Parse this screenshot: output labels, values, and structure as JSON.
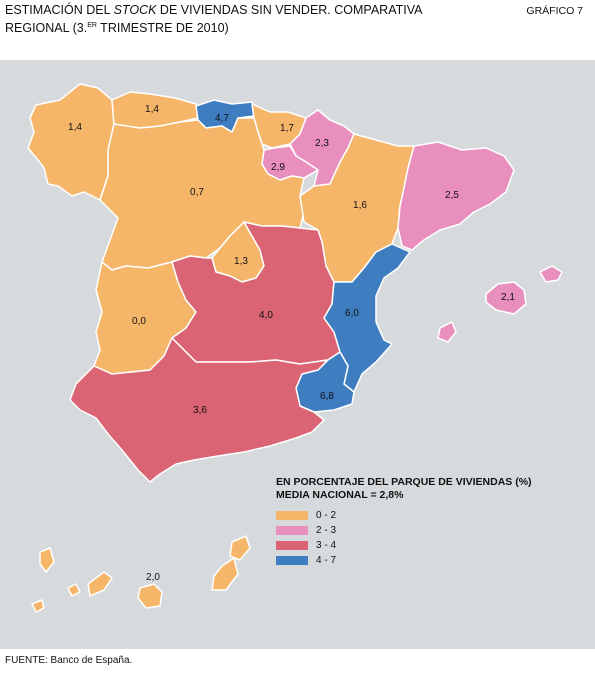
{
  "title": {
    "part1": "ESTIMACIÓN DEL ",
    "part2_italic": "STOCK",
    "part3": " DE VIVIENDAS SIN VENDER. COMPARATIVA",
    "line2a": "REGIONAL (3.",
    "line2_sup": "er",
    "line2b": " TRIMESTRE DE 2010)"
  },
  "figure_number": "GRÁFICO 7",
  "legend": {
    "heading_line1": "EN PORCENTAJE DEL PARQUE DE VIVIENDAS (%)",
    "heading_line2": "MEDIA NACIONAL = 2,8%",
    "items": [
      {
        "label": "0 - 2",
        "color": "#f6b66a"
      },
      {
        "label": "2 - 3",
        "color": "#e98fbd"
      },
      {
        "label": "3 - 4",
        "color": "#da6474"
      },
      {
        "label": "4 - 7",
        "color": "#3f7dc1"
      }
    ]
  },
  "regions": {
    "galicia": "1,4",
    "asturias": "1,4",
    "cantabria": "4,7",
    "pais_vasco": "1,7",
    "navarra": "2,3",
    "la_rioja": "2,9",
    "castilla_leon": "0,7",
    "aragon": "1,6",
    "cataluna": "2,5",
    "madrid": "1,3",
    "extremadura": "0,0",
    "castilla_la_mancha": "4,0",
    "comunidad_valenciana": "6,0",
    "baleares": "2,1",
    "andalucia": "3,6",
    "murcia": "6,8",
    "canarias": "2,0"
  },
  "source": "FUENTE: Banco de España."
}
